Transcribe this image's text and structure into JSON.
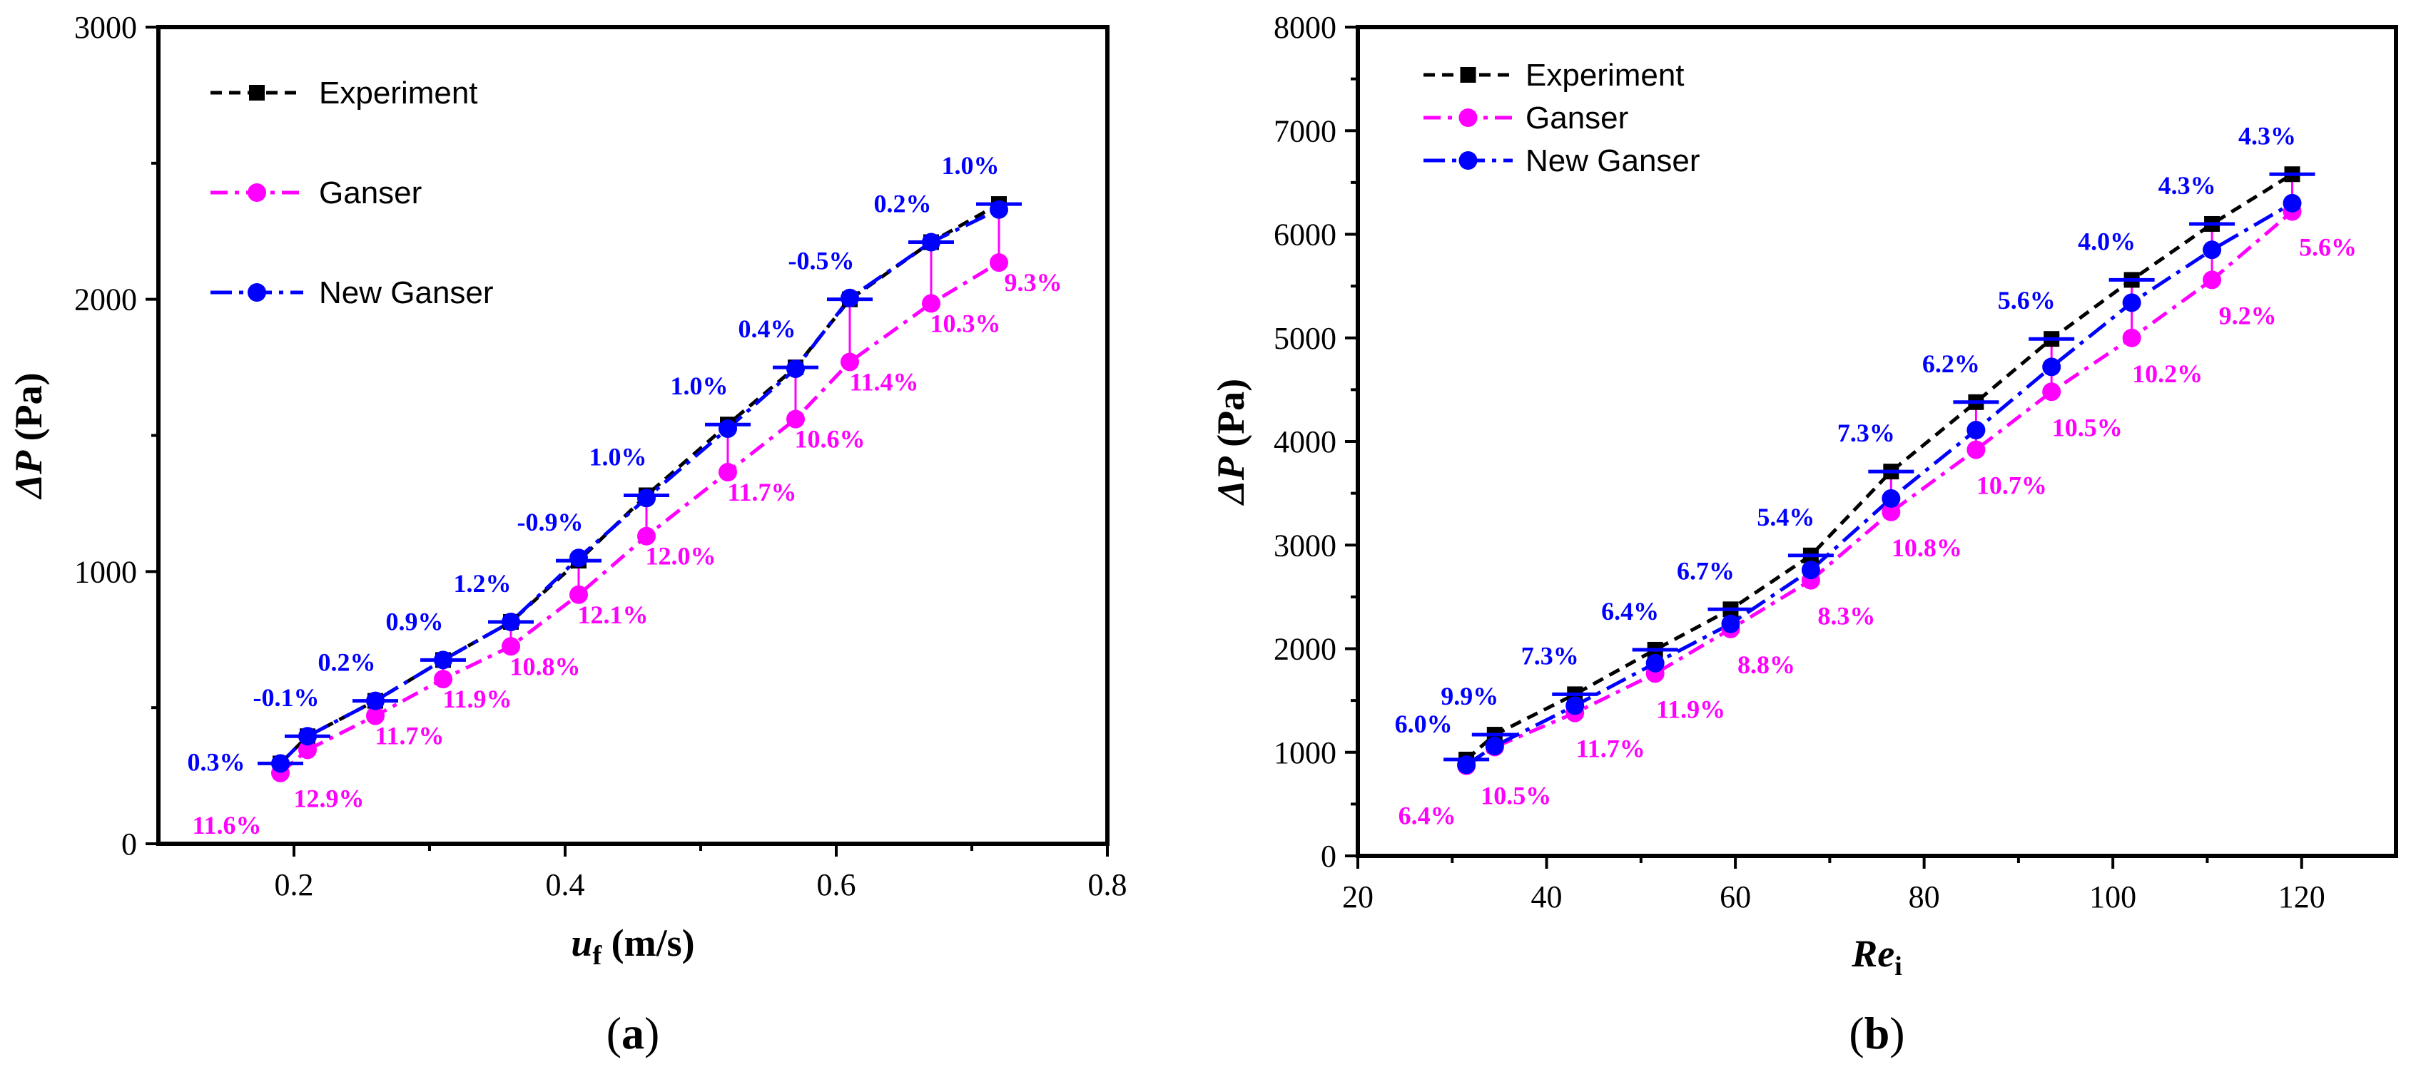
{
  "colors": {
    "experiment": "#000000",
    "ganser": "#ff00ff",
    "new_ganser": "#0000ff",
    "axis": "#000000"
  },
  "chart_data": [
    {
      "id": "a",
      "type": "line",
      "panel_label": "(a)",
      "xlabel_main": "u",
      "xlabel_sub": "f",
      "xlabel_unit": " (m/s)",
      "ylabel_main": "ΔP",
      "ylabel_unit": " (Pa)",
      "xlim": [
        0.1,
        0.8
      ],
      "ylim": [
        0,
        3000
      ],
      "xticks": [
        0.2,
        0.4,
        0.6,
        0.8
      ],
      "xtick_labels": [
        "0.2",
        "0.4",
        "0.6",
        "0.8"
      ],
      "yticks": [
        0,
        1000,
        2000,
        3000
      ],
      "ytick_labels": [
        "0",
        "1000",
        "2000",
        "3000"
      ],
      "legend_position": "top-left",
      "series": [
        {
          "name": "Experiment",
          "style": "experiment",
          "x": [
            0.19,
            0.21,
            0.26,
            0.31,
            0.36,
            0.41,
            0.46,
            0.52,
            0.57,
            0.61,
            0.67,
            0.72
          ],
          "y": [
            295,
            395,
            525,
            675,
            815,
            1040,
            1280,
            1540,
            1750,
            2000,
            2210,
            2350
          ]
        },
        {
          "name": "Ganser",
          "style": "ganser",
          "x": [
            0.19,
            0.21,
            0.26,
            0.31,
            0.36,
            0.41,
            0.46,
            0.52,
            0.57,
            0.61,
            0.67,
            0.72
          ],
          "y": [
            260,
            345,
            470,
            605,
            725,
            915,
            1130,
            1365,
            1560,
            1770,
            1985,
            2135
          ]
        },
        {
          "name": "New Ganser",
          "style": "new_ganser",
          "x": [
            0.19,
            0.21,
            0.26,
            0.31,
            0.36,
            0.41,
            0.46,
            0.52,
            0.57,
            0.61,
            0.67,
            0.72
          ],
          "y": [
            295,
            395,
            525,
            675,
            815,
            1050,
            1270,
            1525,
            1745,
            2005,
            2210,
            2330
          ]
        }
      ],
      "new_ganser_errors": [
        "0.3%",
        "-0.1%",
        "0.2%",
        "0.9%",
        "1.2%",
        "-0.9%",
        "1.0%",
        "1.0%",
        "0.4%",
        "-0.5%",
        "0.2%",
        "1.0%"
      ],
      "ganser_errors": [
        "11.6%",
        "12.9%",
        "11.7%",
        "11.9%",
        "10.8%",
        "12.1%",
        "12.0%",
        "11.7%",
        "10.6%",
        "11.4%",
        "10.3%",
        "9.3%"
      ]
    },
    {
      "id": "b",
      "type": "line",
      "panel_label": "(b)",
      "xlabel_main": "Re",
      "xlabel_sub": "i",
      "xlabel_unit": "",
      "ylabel_main": "ΔP",
      "ylabel_unit": " (Pa)",
      "xlim": [
        20,
        130
      ],
      "ylim": [
        0,
        8000
      ],
      "xticks": [
        20,
        40,
        60,
        80,
        100,
        120
      ],
      "xtick_labels": [
        "20",
        "40",
        "60",
        "80",
        "100",
        "120"
      ],
      "yticks": [
        0,
        1000,
        2000,
        3000,
        4000,
        5000,
        6000,
        7000,
        8000
      ],
      "ytick_labels": [
        "0",
        "1000",
        "2000",
        "3000",
        "4000",
        "5000",
        "6000",
        "7000",
        "8000"
      ],
      "legend_position": "top-left",
      "series": [
        {
          "name": "Experiment",
          "style": "experiment",
          "x": [
            31.5,
            34.5,
            43,
            51.5,
            59.5,
            68,
            76.5,
            85.5,
            93.5,
            102,
            110.5,
            119
          ],
          "y": [
            930,
            1170,
            1560,
            1990,
            2380,
            2900,
            3710,
            4380,
            4990,
            5560,
            6100,
            6580
          ]
        },
        {
          "name": "Ganser",
          "style": "ganser",
          "x": [
            31.5,
            34.5,
            43,
            51.5,
            59.5,
            68,
            76.5,
            85.5,
            93.5,
            102,
            110.5,
            119
          ],
          "y": [
            870,
            1050,
            1380,
            1760,
            2190,
            2660,
            3320,
            3920,
            4480,
            5000,
            5560,
            6220
          ]
        },
        {
          "name": "New Ganser",
          "style": "new_ganser",
          "x": [
            31.5,
            34.5,
            43,
            51.5,
            59.5,
            68,
            76.5,
            85.5,
            93.5,
            102,
            110.5,
            119
          ],
          "y": [
            880,
            1060,
            1450,
            1860,
            2240,
            2760,
            3450,
            4110,
            4720,
            5340,
            5850,
            6300
          ]
        }
      ],
      "new_ganser_errors": [
        "6.0%",
        "9.9%",
        "7.3%",
        "6.4%",
        "6.7%",
        "5.4%",
        "7.3%",
        "6.2%",
        "5.6%",
        "4.0%",
        "4.3%",
        "4.3%"
      ],
      "ganser_errors": [
        "6.4%",
        "10.5%",
        "11.7%",
        "11.9%",
        "8.8%",
        "8.3%",
        "10.8%",
        "10.7%",
        "10.5%",
        "10.2%",
        "9.2%",
        "5.6%"
      ]
    }
  ]
}
